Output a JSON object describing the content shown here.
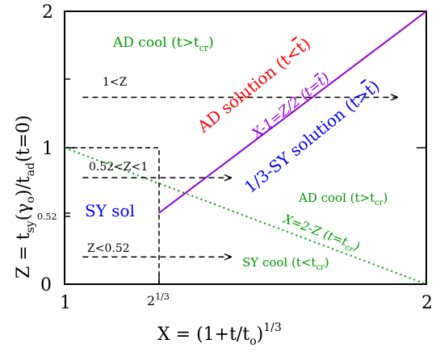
{
  "axes": {
    "x_label": "X = (1+t/t",
    "x_label_sub": "o",
    "x_label_sup": "1/3",
    "x_label_close": ")",
    "y_label": "Z = t",
    "y_label_sub1": "sy",
    "y_label_mid": "(γ",
    "y_label_sub2": "o",
    "y_label_mid2": ")/t",
    "y_label_sub3": "ad",
    "y_label_end": "(t=0)",
    "x_ticks": [
      "1",
      "2"
    ],
    "x_tick_special": "2",
    "x_tick_special_sup": "1/3",
    "y_ticks": [
      "0",
      "1",
      "2"
    ],
    "y_tick_special": "0.52",
    "xlim": [
      1,
      2
    ],
    "ylim": [
      0,
      2
    ]
  },
  "regions": {
    "ad_cool_top": "AD cool (t>t",
    "ad_cool_top_sub": "cr",
    "ad_cool_top_close": ")",
    "ad_solution": "AD solution (t<",
    "ad_solution_tbar": "t",
    "ad_solution_close": ")",
    "sy_solution": "1/3-SY solution (t>",
    "sy_solution_tbar": "t",
    "sy_solution_close": ")",
    "line_x1": "X-1=Z/2 (t=",
    "line_x1_tbar": "t",
    "line_x1_close": ")",
    "sy_sol": "SY sol",
    "ad_cool_right": "AD cool (t>t",
    "ad_cool_right_sub": "cr",
    "ad_cool_right_close": ")",
    "line_x2": "X=2-Z (t=t",
    "line_x2_sub": "cr",
    "line_x2_close": ")",
    "sy_cool": "SY cool (t<t",
    "sy_cool_sub": "cr",
    "sy_cool_close": ")"
  },
  "arrows": {
    "a1": "1<Z",
    "a2": "0.52<Z<1",
    "a3": "Z<0.52"
  },
  "chart_data": {
    "type": "line",
    "xlim": [
      1,
      2
    ],
    "ylim": [
      0,
      2
    ],
    "series": [
      {
        "x": [
          1.26,
          2
        ],
        "y": [
          0.52,
          2
        ]
      },
      {
        "x": [
          1,
          2
        ],
        "y": [
          1,
          0
        ]
      }
    ],
    "box": {
      "x": [
        1,
        1.26
      ],
      "y": [
        0,
        1
      ]
    },
    "arrows": [
      {
        "z": 1.37,
        "x_start": 1.05,
        "x_end": 1.92
      },
      {
        "z": 0.78,
        "x_start": 1.05,
        "x_end": 1.46
      },
      {
        "z": 0.2,
        "x_start": 1.05,
        "x_end": 1.46
      }
    ],
    "colors": {
      "purple": "#9400d3",
      "green": "#009900",
      "red": "#ff0000",
      "blue": "#0000ff"
    }
  }
}
